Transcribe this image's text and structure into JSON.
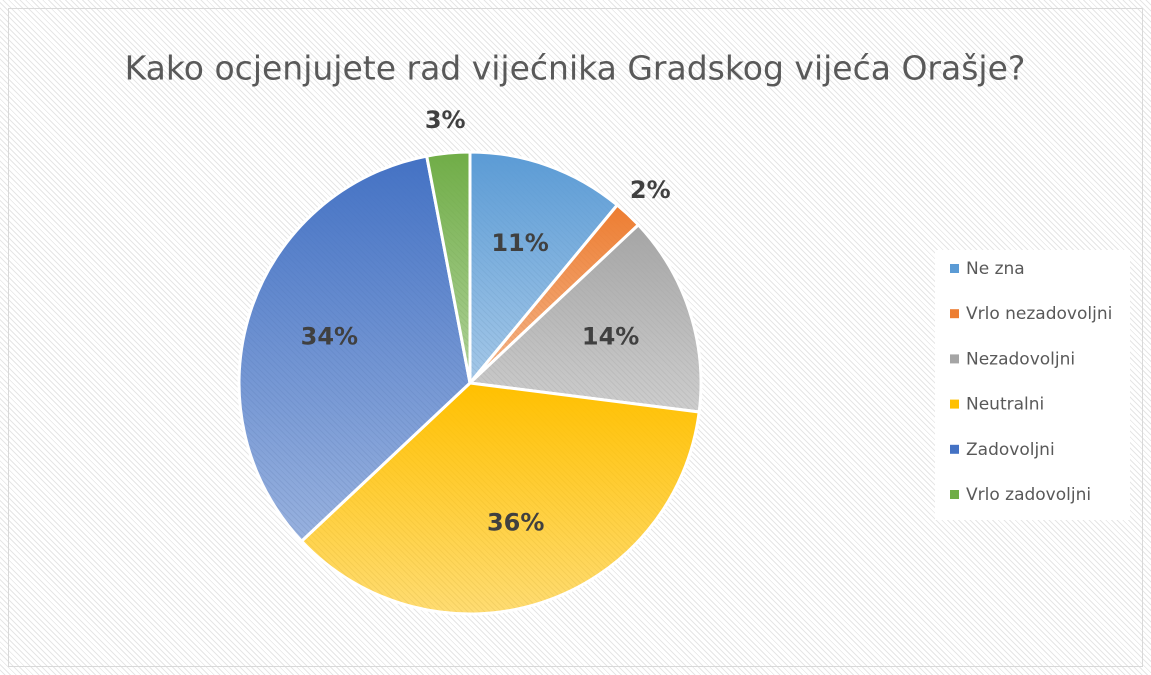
{
  "chart_data": {
    "type": "pie",
    "title": "Kako ocjenjujete rad vijećnika Gradskog vijeća Orašje?",
    "categories": [
      "Ne zna",
      "Vrlo nezadovoljni",
      "Nezadovoljni",
      "Neutralni",
      "Zadovoljni",
      "Vrlo zadovoljni"
    ],
    "values": [
      11,
      2,
      14,
      36,
      34,
      3
    ],
    "value_labels": [
      "11%",
      "2%",
      "14%",
      "36%",
      "34%",
      "3%"
    ],
    "colors": [
      "#5b9bd5",
      "#ed7d31",
      "#a5a5a5",
      "#ffc000",
      "#4472c4",
      "#70ad47"
    ],
    "legend": "right"
  }
}
